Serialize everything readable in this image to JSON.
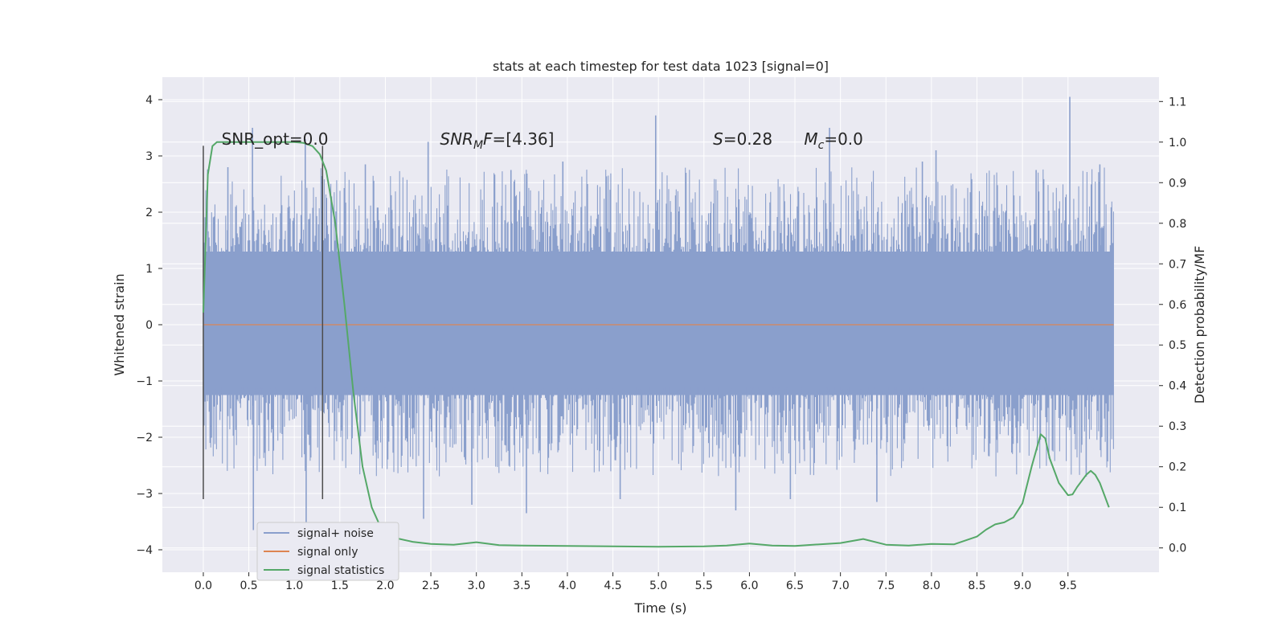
{
  "chart_data": {
    "type": "line",
    "title": "stats at each timestep for test data 1023 [signal=0]",
    "xlabel": "Time (s)",
    "ylabel": "Whitened strain",
    "y2label": "Detection probability/MF",
    "xlim": [
      -0.45,
      10.5
    ],
    "ylim": [
      -4.4,
      4.4
    ],
    "y2lim": [
      -0.06,
      1.16
    ],
    "xticks": [
      0.0,
      0.5,
      1.0,
      1.5,
      2.0,
      2.5,
      3.0,
      3.5,
      4.0,
      4.5,
      5.0,
      5.5,
      6.0,
      6.5,
      7.0,
      7.5,
      8.0,
      8.5,
      9.0,
      9.5
    ],
    "xtick_labels": [
      "0.0",
      "0.5",
      "1.0",
      "1.5",
      "2.0",
      "2.5",
      "3.0",
      "3.5",
      "4.0",
      "4.5",
      "5.0",
      "5.5",
      "6.0",
      "6.5",
      "7.0",
      "7.5",
      "8.0",
      "8.5",
      "9.0",
      "9.5"
    ],
    "yticks": [
      -4,
      -3,
      -2,
      -1,
      0,
      1,
      2,
      3,
      4
    ],
    "ytick_labels": [
      "−4",
      "−3",
      "−2",
      "−1",
      "0",
      "1",
      "2",
      "3",
      "4"
    ],
    "y2ticks": [
      0.0,
      0.1,
      0.2,
      0.3,
      0.4,
      0.5,
      0.6,
      0.7,
      0.8,
      0.9,
      1.0,
      1.1
    ],
    "y2tick_labels": [
      "0.0",
      "0.1",
      "0.2",
      "0.3",
      "0.4",
      "0.5",
      "0.6",
      "0.7",
      "0.8",
      "0.9",
      "1.0",
      "1.1"
    ],
    "grid": true,
    "legend_position": "lower-left",
    "series": [
      {
        "name": "signal+ noise",
        "color": "#8a9fcc",
        "axis": "left",
        "kind": "noise",
        "x_range": [
          0.0,
          10.0
        ],
        "core_band": [
          -1.25,
          1.3
        ],
        "spikes": [
          {
            "x": 0.27,
            "y": 2.8
          },
          {
            "x": 0.54,
            "y": 3.5
          },
          {
            "x": 0.55,
            "y": -3.65
          },
          {
            "x": 1.12,
            "y": 3.3
          },
          {
            "x": 1.13,
            "y": -3.55
          },
          {
            "x": 2.42,
            "y": -3.45
          },
          {
            "x": 2.47,
            "y": 3.25
          },
          {
            "x": 3.55,
            "y": -3.35
          },
          {
            "x": 3.38,
            "y": 2.75
          },
          {
            "x": 4.97,
            "y": 3.72
          },
          {
            "x": 4.58,
            "y": -3.1
          },
          {
            "x": 5.85,
            "y": -3.3
          },
          {
            "x": 6.88,
            "y": 3.5
          },
          {
            "x": 7.4,
            "y": -3.15
          },
          {
            "x": 8.05,
            "y": 3.1
          },
          {
            "x": 9.52,
            "y": 4.05
          },
          {
            "x": 9.15,
            "y": 2.75
          },
          {
            "x": 9.7,
            "y": -2.7
          },
          {
            "x": 2.95,
            "y": -3.2
          },
          {
            "x": 6.45,
            "y": -3.1
          },
          {
            "x": 7.9,
            "y": 2.9
          },
          {
            "x": 9.85,
            "y": 2.85
          },
          {
            "x": 3.95,
            "y": 2.9
          },
          {
            "x": 1.78,
            "y": 2.85
          }
        ]
      },
      {
        "name": "signal only",
        "color": "#dd8452",
        "axis": "left",
        "x": [
          0.0,
          10.0
        ],
        "y": [
          0.0,
          0.0
        ]
      },
      {
        "name": "signal statistics",
        "color": "#55a868",
        "axis": "right",
        "x": [
          0.0,
          0.05,
          0.1,
          0.15,
          0.25,
          0.5,
          0.75,
          1.0,
          1.1,
          1.2,
          1.28,
          1.35,
          1.45,
          1.55,
          1.65,
          1.75,
          1.85,
          1.95,
          2.1,
          2.3,
          2.5,
          2.75,
          3.0,
          3.25,
          3.5,
          4.0,
          4.5,
          5.0,
          5.5,
          5.75,
          6.0,
          6.25,
          6.5,
          7.0,
          7.25,
          7.5,
          7.75,
          8.0,
          8.25,
          8.5,
          8.6,
          8.7,
          8.8,
          8.9,
          9.0,
          9.1,
          9.2,
          9.25,
          9.3,
          9.4,
          9.5,
          9.55,
          9.6,
          9.7,
          9.75,
          9.8,
          9.85,
          9.9,
          9.95
        ],
        "y": [
          0.58,
          0.92,
          0.99,
          1.0,
          1.0,
          1.0,
          1.0,
          1.0,
          0.998,
          0.99,
          0.97,
          0.93,
          0.8,
          0.6,
          0.38,
          0.2,
          0.1,
          0.05,
          0.025,
          0.015,
          0.01,
          0.008,
          0.014,
          0.007,
          0.006,
          0.005,
          0.004,
          0.003,
          0.004,
          0.006,
          0.011,
          0.006,
          0.005,
          0.012,
          0.022,
          0.008,
          0.006,
          0.01,
          0.009,
          0.028,
          0.045,
          0.058,
          0.063,
          0.075,
          0.11,
          0.2,
          0.28,
          0.27,
          0.22,
          0.16,
          0.13,
          0.132,
          0.15,
          0.18,
          0.19,
          0.18,
          0.16,
          0.13,
          0.1
        ]
      }
    ],
    "vlines": [
      {
        "x": 0.0,
        "ymin": -3.1,
        "ymax": 3.18,
        "color": "#4d4d4d"
      },
      {
        "x": 1.31,
        "ymin": -3.1,
        "ymax": 3.18,
        "color": "#4d4d4d"
      }
    ],
    "annotations": [
      {
        "id": "snr-opt",
        "x": 0.2,
        "y": 3.2,
        "text": "SNR_opt=0.0",
        "italic": false
      },
      {
        "id": "snr-mf",
        "x": 2.6,
        "y": 3.2,
        "parts": [
          {
            "t": "SNR",
            "style": "italic"
          },
          {
            "t": "M",
            "style": "italic-sub"
          },
          {
            "t": "F",
            "style": "italic"
          },
          {
            "t": "=[4.36]",
            "style": "normal"
          }
        ]
      },
      {
        "id": "s-stat",
        "x": 5.6,
        "y": 3.2,
        "parts": [
          {
            "t": "S",
            "style": "italic"
          },
          {
            "t": "=0.28",
            "style": "normal"
          }
        ]
      },
      {
        "id": "mc-stat",
        "x": 6.6,
        "y": 3.2,
        "parts": [
          {
            "t": "M",
            "style": "italic"
          },
          {
            "t": "c",
            "style": "italic-sub"
          },
          {
            "t": "=0.0",
            "style": "normal"
          }
        ]
      }
    ],
    "colors": {
      "plot_background": "#eaeaf2",
      "grid": "#ffffff",
      "text": "#262626",
      "tick_mark": "#262626"
    }
  }
}
